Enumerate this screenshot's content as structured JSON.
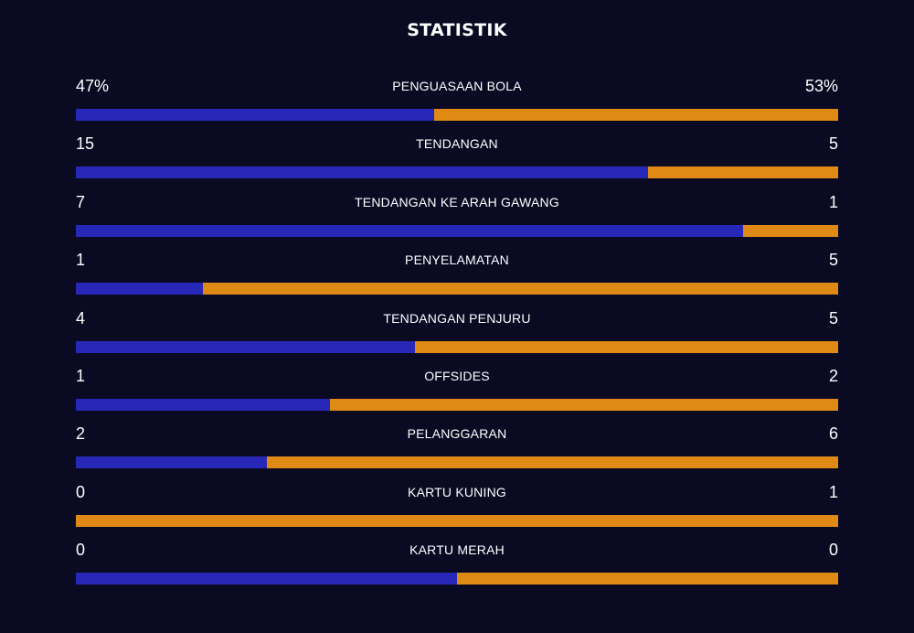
{
  "title": "STATISTIK",
  "colors": {
    "background": "#0a0a23",
    "home_bar": "#2828b8",
    "away_bar": "#df8a14",
    "text": "#ffffff"
  },
  "stats": [
    {
      "label": "PENGUASAAN BOLA",
      "left": "47%",
      "right": "53%",
      "left_share": 0.47
    },
    {
      "label": "TENDANGAN",
      "left": "15",
      "right": "5",
      "left_share": 0.75
    },
    {
      "label": "TENDANGAN KE ARAH GAWANG",
      "left": "7",
      "right": "1",
      "left_share": 0.875
    },
    {
      "label": "PENYELAMATAN",
      "left": "1",
      "right": "5",
      "left_share": 0.1667
    },
    {
      "label": "TENDANGAN PENJURU",
      "left": "4",
      "right": "5",
      "left_share": 0.4444
    },
    {
      "label": "OFFSIDES",
      "left": "1",
      "right": "2",
      "left_share": 0.3333
    },
    {
      "label": "PELANGGARAN",
      "left": "2",
      "right": "6",
      "left_share": 0.25
    },
    {
      "label": "KARTU KUNING",
      "left": "0",
      "right": "1",
      "left_share": 0
    },
    {
      "label": "KARTU MERAH",
      "left": "0",
      "right": "0",
      "left_share": 0.5
    }
  ]
}
